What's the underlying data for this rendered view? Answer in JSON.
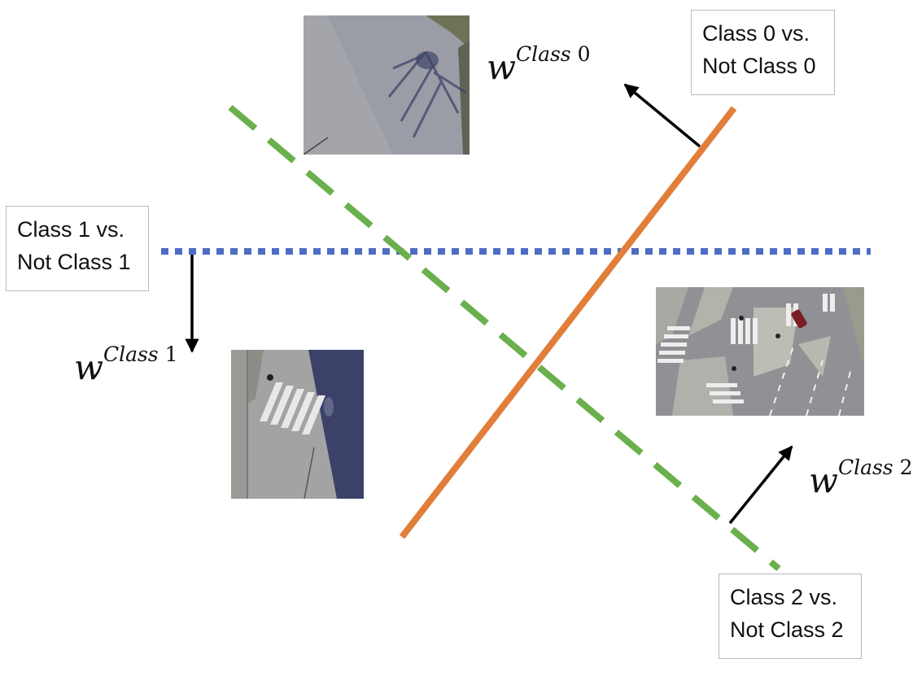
{
  "colors": {
    "class0_line": "#e07e3a",
    "class1_line": "#4f6cc4",
    "class2_line": "#6ab04c",
    "arrow": "#000000",
    "box_border": "#b9b9b9"
  },
  "boxes": {
    "class0": {
      "line1": "Class 0 vs.",
      "line2": "Not Class 0"
    },
    "class1": {
      "line1": "Class 1 vs.",
      "line2": "Not Class 1"
    },
    "class2": {
      "line1": "Class 2 vs.",
      "line2": "Not Class 2"
    }
  },
  "weights": {
    "class0": {
      "symbol": "w",
      "superscript": "Class",
      "index": "0"
    },
    "class1": {
      "symbol": "w",
      "superscript": "Class",
      "index": "1"
    },
    "class2": {
      "symbol": "w",
      "superscript": "Class",
      "index": "2"
    }
  },
  "images": {
    "top": "aerial-road-shadows",
    "left": "aerial-crosswalk-small",
    "right": "aerial-intersection"
  }
}
